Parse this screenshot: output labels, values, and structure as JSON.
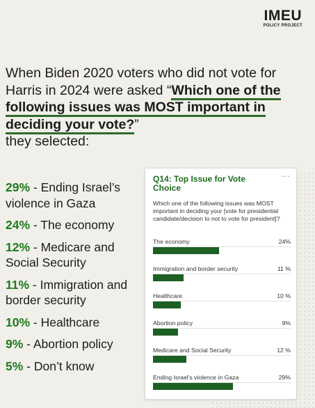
{
  "brand": {
    "logo": "IMEU",
    "subtitle": "POLICY PROJECT"
  },
  "headline": {
    "intro": "When Biden 2020 voters who did not vote for Harris in 2024 were asked “",
    "question": "Which one of the following issues was MOST important in deciding your vote?",
    "close": "”",
    "outro": "they selected:"
  },
  "list": [
    {
      "pct": "29%",
      "text": " - Ending Israel’s violence in Gaza"
    },
    {
      "pct": "24%",
      "text": " - The economy"
    },
    {
      "pct": "12%",
      "text": " - Medicare and Social Security"
    },
    {
      "pct": "11%",
      "text": " - Immigration and border security"
    },
    {
      "pct": "10%",
      "text": " - Healthcare"
    },
    {
      "pct": "9%",
      "text": " - Abortion policy"
    },
    {
      "pct": "5%",
      "text": " - Don’t know"
    }
  ],
  "card": {
    "menu": "⋯",
    "question_text": "Which one of the following issues was MOST important in deciding your [vote for presidential candidate/decision to not to vote for president]?",
    "bar_color": "#1e5f23",
    "accent_color": "#1f7a1f"
  },
  "chart_data": {
    "type": "bar",
    "title": "Q14: Top Issue for Vote Choice",
    "categories": [
      "The economy",
      "Immigration and border security",
      "Healthcare",
      "Abortion policy",
      "Medicare and Social Security",
      "Ending Israel's violence in Gaza"
    ],
    "values": [
      24,
      11,
      10,
      9,
      12,
      29
    ],
    "value_labels": [
      "24%",
      "11 %",
      "10 %",
      "9%",
      "12 %",
      "29%"
    ],
    "xlim": [
      0,
      100
    ]
  }
}
